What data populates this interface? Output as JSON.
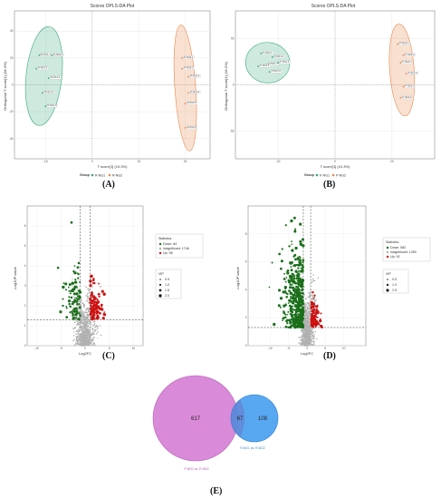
{
  "panels": {
    "A": {
      "letter": "(A)",
      "title": "Scores OPLS-DA Plot",
      "xlabel": "T score[1] (19.3%)",
      "ylabel": "Orthogonal T score[1] (38.4%)",
      "legend_title": "Group",
      "legend_items": [
        "R-NG1",
        "R-NG2"
      ],
      "x_ticks": [
        "-15",
        "0",
        "15",
        "30"
      ],
      "y_ticks": [
        "40",
        "20",
        "0",
        "-20",
        "-40"
      ],
      "colors": {
        "g1": "#3aaa7a",
        "g2": "#e8884a"
      },
      "g1_labels": [
        "R-NG1-1",
        "R-NG1-2",
        "R-NG1-3",
        "R-NG1-4",
        "R-NG1-5",
        "R-NG1-6"
      ],
      "g2_labels": [
        "R-NG2-1",
        "R-NG2-2",
        "R-NG2-3",
        "R-NG2-4",
        "R-NG2-5",
        "R-NG2-6"
      ]
    },
    "B": {
      "letter": "(B)",
      "title": "Scores OPLS-DA Plot",
      "xlabel": "T score[1] (41.3%)",
      "ylabel": "Orthogonal T score[1] (18.5%)",
      "legend_title": "Group",
      "legend_items": [
        "P-NG1",
        "P-NG2"
      ],
      "x_ticks": [
        "-20",
        "0",
        "20"
      ],
      "y_ticks": [
        "50",
        "0",
        "-50"
      ],
      "colors": {
        "g1": "#3aaa7a",
        "g2": "#e8884a"
      },
      "g1_labels": [
        "P-NG1-1",
        "P-NG1-2",
        "P-NG1-3",
        "P-NG1-4",
        "P-NG1-5",
        "P-NG1-6"
      ],
      "g2_labels": [
        "P-NG2-1",
        "P-NG2-2",
        "P-NG2-3",
        "P-NG2-4",
        "P-NG2-5",
        "P-NG2-6"
      ]
    },
    "C": {
      "letter": "(C)",
      "xlabel": "Log2FC",
      "ylabel": "-Log10P value",
      "x_ticks": [
        "-10",
        "-5",
        "0",
        "5",
        "10"
      ],
      "y_ticks": [
        "0",
        "1",
        "2",
        "3",
        "4",
        "5",
        "6"
      ],
      "stats_title": "Statistics",
      "stats": [
        {
          "label": "Down: 84",
          "color": "#1a6e1a"
        },
        {
          "label": "insignificant: 1746",
          "color": "#b0b0b0"
        },
        {
          "label": "Up: 98",
          "color": "#cc1111"
        }
      ],
      "vip_title": "VIP",
      "vip": [
        "0.5",
        "1.0",
        "1.5",
        "2.0"
      ]
    },
    "D": {
      "letter": "(D)",
      "xlabel": "Log2FC",
      "ylabel": "-Log10P value",
      "x_ticks": [
        "-10",
        "-5",
        "0",
        "5",
        "10"
      ],
      "y_ticks": [
        "0",
        "2",
        "4",
        "6",
        "8"
      ],
      "stats_title": "Statistics",
      "stats": [
        {
          "label": "Down: 582",
          "color": "#1a6e1a"
        },
        {
          "label": "insignificant: 1250",
          "color": "#b0b0b0"
        },
        {
          "label": "Up: 92",
          "color": "#cc1111"
        }
      ],
      "vip_title": "VIP",
      "vip": [
        "0.5",
        "1.0",
        "1.5"
      ]
    },
    "E": {
      "letter": "(E)",
      "left_only": "617",
      "overlap": "67",
      "right_only": "108",
      "left_label": "P-NG1 vs. P-NG2",
      "right_label": "R-NG1 vs. R-NG2",
      "left_color": "#d98ad8",
      "right_color": "#4a9ff0"
    }
  },
  "chart_data": [
    {
      "type": "scatter",
      "title": "Scores OPLS-DA Plot",
      "xlabel": "T score[1] (19.3%)",
      "ylabel": "Orthogonal T score[1] (38.4%)",
      "xlim": [
        -25,
        38
      ],
      "ylim": [
        -55,
        55
      ],
      "series": [
        {
          "name": "R-NG1",
          "x": [
            -17,
            -13,
            -18,
            -14,
            -16,
            -15
          ],
          "y": [
            22,
            22,
            12,
            5,
            -6,
            -16
          ]
        },
        {
          "name": "R-NG2",
          "x": [
            29,
            29,
            31,
            31,
            30,
            30
          ],
          "y": [
            20,
            12,
            6,
            -6,
            -14,
            -32
          ]
        }
      ]
    },
    {
      "type": "scatter",
      "title": "Scores OPLS-DA Plot",
      "xlabel": "T score[1] (41.3%)",
      "ylabel": "Orthogonal T score[1] (18.5%)",
      "xlim": [
        -35,
        35
      ],
      "ylim": [
        -80,
        80
      ],
      "series": [
        {
          "name": "P-NG1",
          "x": [
            -26,
            -22,
            -24,
            -20,
            -23,
            -27
          ],
          "y": [
            34,
            30,
            22,
            24,
            14,
            20
          ]
        },
        {
          "name": "P-NG2",
          "x": [
            22,
            24,
            23,
            25,
            24,
            23
          ],
          "y": [
            44,
            32,
            24,
            12,
            -2,
            -14
          ]
        }
      ]
    },
    {
      "type": "scatter",
      "xlabel": "Log2FC",
      "ylabel": "-Log10P value",
      "xlim": [
        -12,
        12
      ],
      "ylim": [
        0,
        7
      ],
      "series": [
        {
          "name": "Down",
          "count": 84
        },
        {
          "name": "insignificant",
          "count": 1746
        },
        {
          "name": "Up",
          "count": 98
        }
      ],
      "thresholds": {
        "x": [
          -1,
          1
        ],
        "y": 1.3
      }
    },
    {
      "type": "scatter",
      "xlabel": "Log2FC",
      "ylabel": "-Log10P value",
      "xlim": [
        -16,
        16
      ],
      "ylim": [
        0,
        10
      ],
      "series": [
        {
          "name": "Down",
          "count": 582
        },
        {
          "name": "insignificant",
          "count": 1250
        },
        {
          "name": "Up",
          "count": 92
        }
      ],
      "thresholds": {
        "x": [
          -1,
          1
        ],
        "y": 1.3
      }
    },
    {
      "type": "venn",
      "sets": [
        {
          "name": "P-NG1 vs. P-NG2",
          "only": 617
        },
        {
          "name": "R-NG1 vs. R-NG2",
          "only": 108
        }
      ],
      "overlap": 67
    }
  ]
}
